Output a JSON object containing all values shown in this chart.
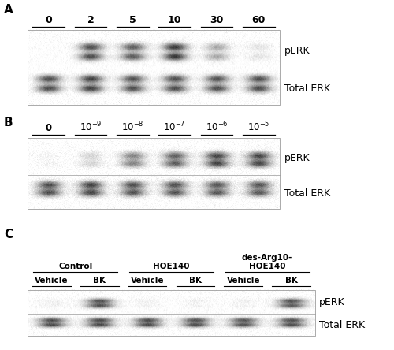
{
  "fig_width": 5.0,
  "fig_height": 4.44,
  "dpi": 100,
  "background_color": "#ffffff",
  "panel_A": {
    "label": "A",
    "time_labels": [
      "0",
      "2",
      "5",
      "10",
      "30",
      "60"
    ],
    "perk_intensities": [
      0.0,
      0.78,
      0.72,
      0.88,
      0.38,
      0.12
    ],
    "total_intensities": [
      0.82,
      0.88,
      0.8,
      0.82,
      0.8,
      0.82
    ],
    "perk_label": "pERK",
    "total_label": "Total ERK"
  },
  "panel_B": {
    "label": "B",
    "conc_labels": [
      "0",
      "$10^{-9}$",
      "$10^{-8}$",
      "$10^{-7}$",
      "$10^{-6}$",
      "$10^{-5}$"
    ],
    "perk_intensities": [
      0.05,
      0.18,
      0.52,
      0.68,
      0.8,
      0.78
    ],
    "total_intensities": [
      0.8,
      0.84,
      0.78,
      0.78,
      0.76,
      0.76
    ],
    "perk_label": "pERK",
    "total_label": "Total ERK"
  },
  "panel_C": {
    "label": "C",
    "subgroup_labels": [
      "Vehicle",
      "BK",
      "Vehicle",
      "BK",
      "Vehicle",
      "BK"
    ],
    "group_labels": [
      "Control",
      "HOE140",
      "HOE140"
    ],
    "group_top_labels": [
      "",
      "",
      "des-Arg10-"
    ],
    "perk_intensities": [
      0.06,
      0.75,
      0.06,
      0.06,
      0.06,
      0.72
    ],
    "total_intensities": [
      0.8,
      0.82,
      0.8,
      0.8,
      0.78,
      0.8
    ],
    "perk_label": "pERK",
    "total_label": "Total ERK"
  }
}
